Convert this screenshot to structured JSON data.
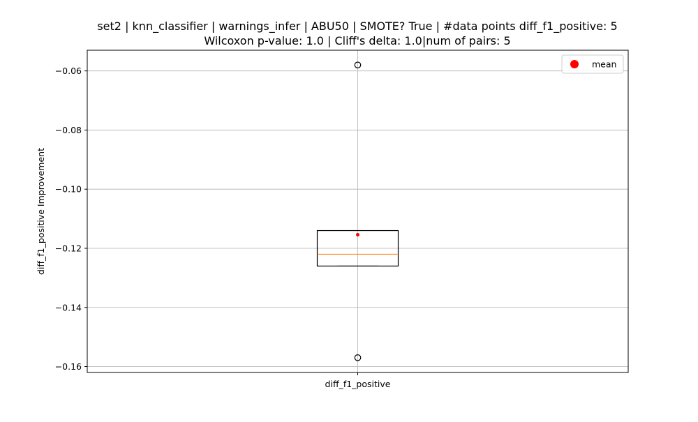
{
  "chart_data": {
    "type": "box",
    "title_line1": "set2 | knn_classifier | warnings_infer | ABU50 | SMOTE? True | #data points diff_f1_positive: 5",
    "title_line2": "Wilcoxon p-value: 1.0 | Cliff's delta: 1.0|num of pairs: 5",
    "xlabel": "",
    "ylabel": "diff_f1_positive Improvement",
    "categories": [
      "diff_f1_positive"
    ],
    "ylim": [
      -0.162,
      -0.053
    ],
    "yticks": [
      -0.06,
      -0.08,
      -0.1,
      -0.12,
      -0.14,
      -0.16
    ],
    "ytick_labels": [
      "−0.06",
      "−0.08",
      "−0.10",
      "−0.12",
      "−0.14",
      "−0.16"
    ],
    "grid": true,
    "legend": {
      "placement": "upper right",
      "label": "mean"
    },
    "boxes": [
      {
        "category": "diff_f1_positive",
        "q1": -0.126,
        "median": -0.122,
        "q3": -0.114,
        "whisker_low": -0.126,
        "whisker_high": -0.114,
        "mean": -0.1154,
        "outliers": [
          -0.058,
          -0.157
        ]
      }
    ],
    "colors": {
      "box": "#000000",
      "median": "#ff7f0e",
      "mean": "#ff0000",
      "grid": "#b0b0b0"
    }
  }
}
